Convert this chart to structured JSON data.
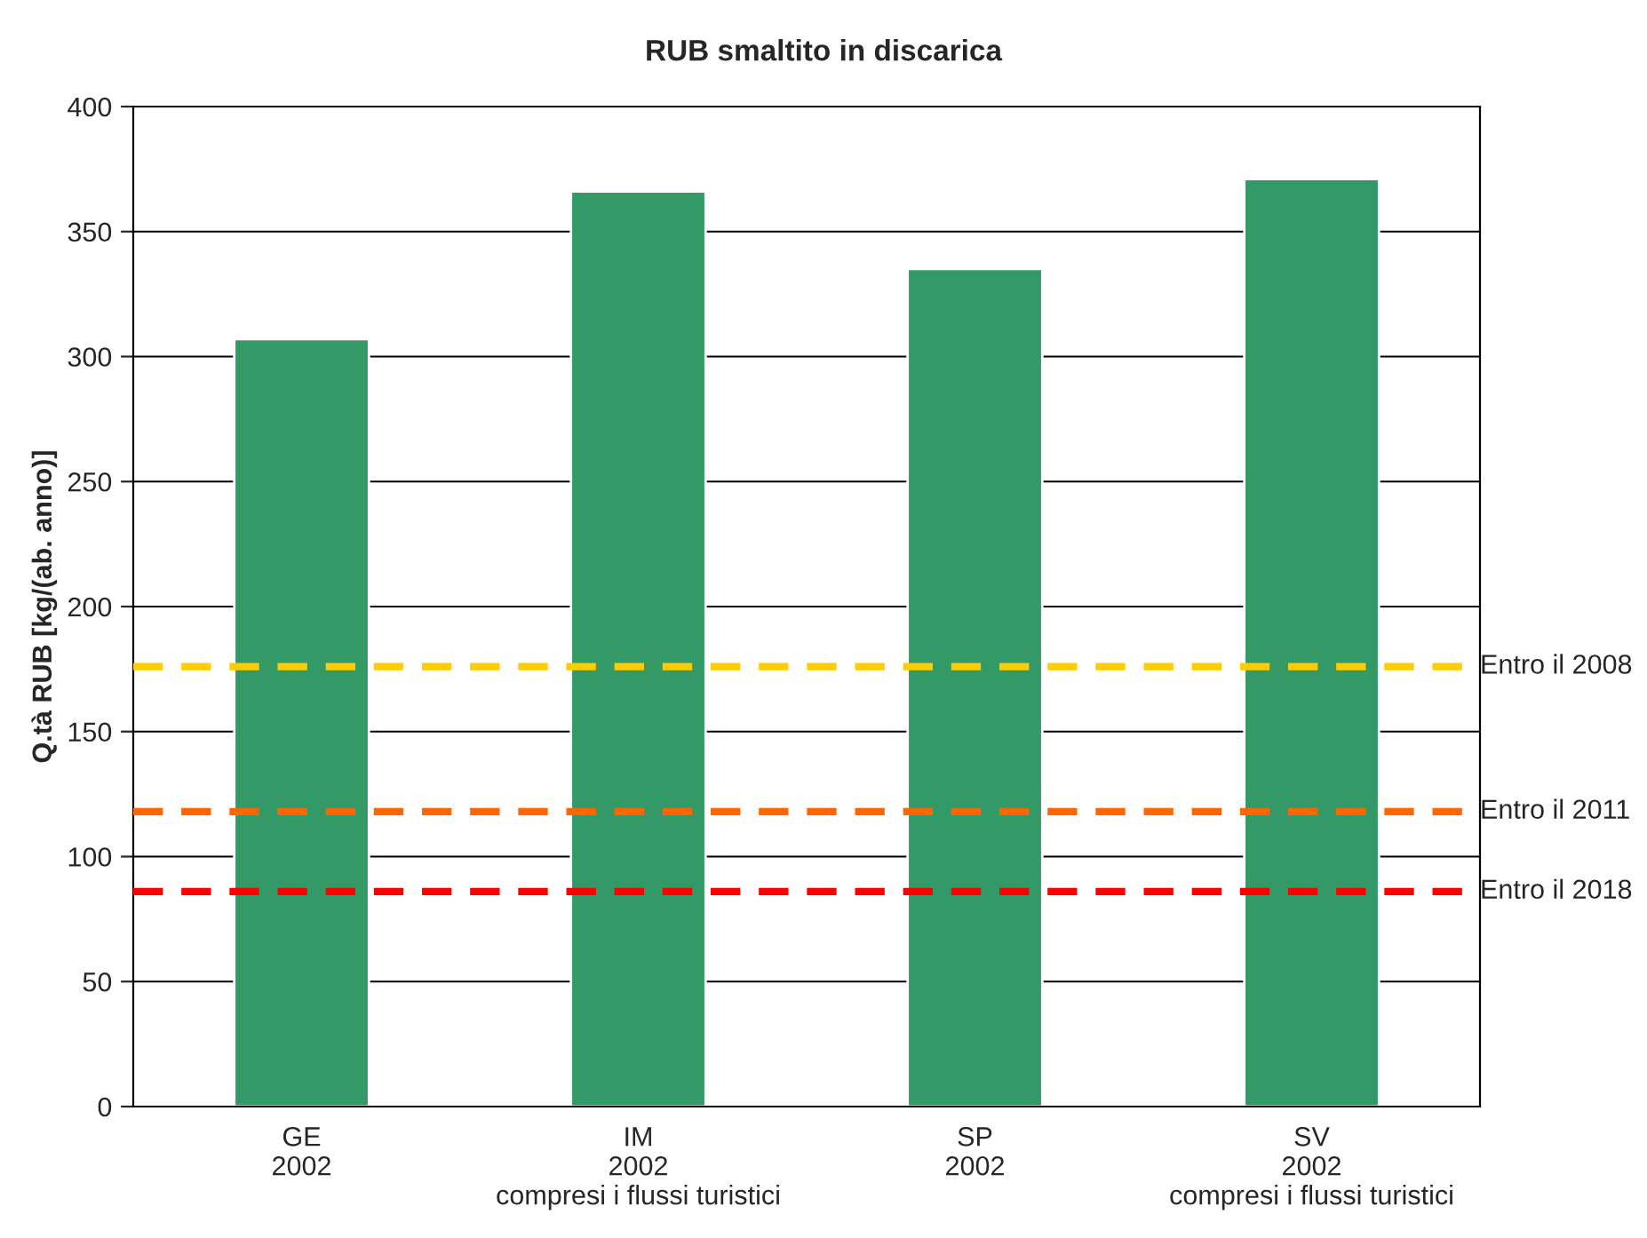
{
  "chart_data": {
    "type": "bar",
    "title": "RUB smaltito in discarica",
    "ylabel": "Q.tà RUB [kg/(ab. anno)]",
    "categories": [
      "GE\n2002",
      "IM\n2002\ncompresi i flussi turistici",
      "SP\n2002",
      "SV\n2002\ncompresi i flussi turistici"
    ],
    "values": [
      307,
      366,
      335,
      371
    ],
    "color": "#339966",
    "ylim": [
      0,
      400
    ],
    "yticks": [
      0,
      50,
      100,
      150,
      200,
      250,
      300,
      350,
      400
    ],
    "grid": "y",
    "ref_lines": [
      {
        "axis": "y",
        "value": 176,
        "label": "Entro il 2008",
        "color": "#ffcc00",
        "line_style": "dashed"
      },
      {
        "axis": "y",
        "value": 118,
        "label": "Entro il 2011",
        "color": "#ff6600",
        "line_style": "dashed"
      },
      {
        "axis": "y",
        "value": 86,
        "label": "Entro il 2018",
        "color": "#ff0000",
        "line_style": "dashed"
      }
    ]
  }
}
